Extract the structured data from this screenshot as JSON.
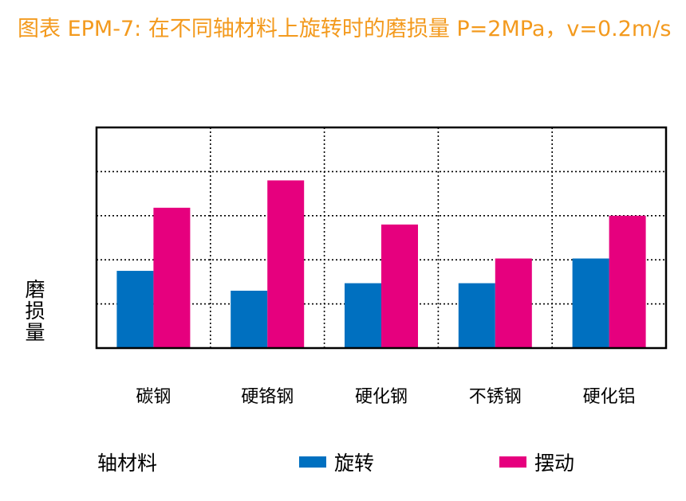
{
  "chart_data": {
    "type": "bar",
    "title": "图表 EPM-7: 在不同轴材料上旋转时的磨损量 P=2MPa，v=0.2m/s",
    "xlabel": "轴材料",
    "ylabel": "磨损量",
    "categories": [
      "碳钢",
      "硬铬钢",
      "硬化钢",
      "不锈钢",
      "硬化铝"
    ],
    "series": [
      {
        "name": "旋转",
        "color": "#0070c0",
        "values": [
          1.75,
          1.3,
          1.47,
          1.47,
          2.03
        ]
      },
      {
        "name": "摆动",
        "color": "#e6007e",
        "values": [
          3.18,
          3.8,
          2.8,
          2.03,
          3.0
        ]
      }
    ],
    "ylim": [
      0,
      5
    ],
    "grid": true,
    "legend_position": "bottom"
  }
}
